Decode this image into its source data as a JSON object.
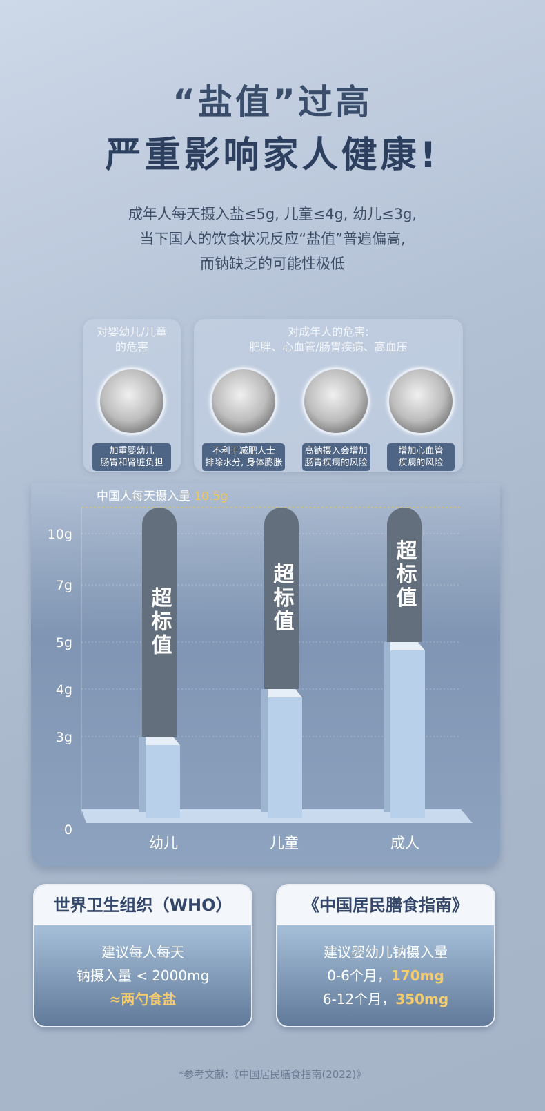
{
  "header": {
    "title1": "“盐值”过高",
    "title2": "严重影响家人健康!",
    "sub": [
      "成年人每天摄入盐≤5g, 儿童≤4g, 幼儿≤3g,",
      "当下国人的饮食状况反应“盐值”普遍偏高,",
      "而钠缺乏的可能性极低"
    ]
  },
  "harms": {
    "child_title": [
      "对婴幼儿/儿童",
      "的危害"
    ],
    "child_items": [
      {
        "label": [
          "加重婴幼儿",
          "肠胃和肾脏负担"
        ]
      }
    ],
    "adult_title": [
      "对成年人的危害:",
      "肥胖、心血管/肠胃疾病、高血压"
    ],
    "adult_items": [
      {
        "label": [
          "不利于减肥人士",
          "排除水分, 身体膨胀"
        ]
      },
      {
        "label": [
          "高钠摄入会增加",
          "肠胃疾病的风险"
        ]
      },
      {
        "label": [
          "增加心血管",
          "疾病的风险"
        ]
      }
    ]
  },
  "chart_data": {
    "type": "bar",
    "categories": [
      "幼儿",
      "儿童",
      "成人"
    ],
    "series": [
      {
        "values": [
          3,
          4,
          5
        ]
      },
      {
        "values": [
          10.5,
          10.5,
          10.5
        ]
      }
    ],
    "bar_label": "超标值",
    "reference": {
      "label": "中国人每天摄入量",
      "value_label": "10.5g",
      "value": 10.5
    },
    "yticks": [
      0,
      3,
      4,
      5,
      7,
      10
    ],
    "ytick_labels": [
      "0",
      "3g",
      "4g",
      "5g",
      "7g",
      "10g"
    ],
    "ylim": [
      0,
      10.5
    ],
    "grid": true,
    "colors": {
      "limit": "#b8d0ea",
      "excess": "#646f7d",
      "reference": "#f2c94c"
    }
  },
  "who": {
    "title": "世界卫生组织（WHO）",
    "lines": [
      "建议每人每天",
      "钠摄入量 < 2000mg"
    ],
    "highlight": "≈两勺食盐"
  },
  "guide": {
    "title": "《中国居民膳食指南》",
    "line1": "建议婴幼儿钠摄入量",
    "row1": "0-6个月，",
    "val1": "170mg",
    "row2": "6-12个月，",
    "val2": "350mg"
  },
  "footnote": "*参考文献:《中国居民膳食指南(2022)》"
}
